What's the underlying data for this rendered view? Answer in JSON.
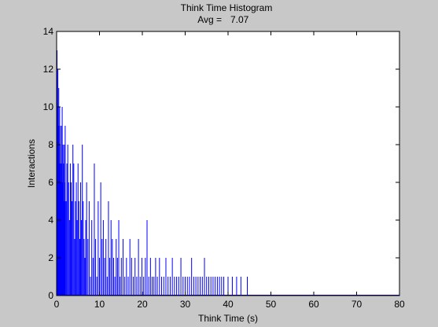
{
  "chart_data": {
    "type": "bar",
    "title": "Think Time Histogram",
    "subtitle_label": "Avg =",
    "subtitle_value": "7.07",
    "xlabel": "Think Time (s)",
    "ylabel": "Interactions",
    "xlim": [
      0,
      80
    ],
    "ylim": [
      0,
      14
    ],
    "xticks": [
      "0",
      "10",
      "20",
      "30",
      "40",
      "50",
      "60",
      "70",
      "80"
    ],
    "yticks": [
      "0",
      "2",
      "4",
      "6",
      "8",
      "10",
      "12",
      "14"
    ],
    "grid": false,
    "series_color": "#0000ff",
    "bin_width": 0.1,
    "x": [
      0.1,
      0.2,
      0.3,
      0.4,
      0.5,
      0.6,
      0.7,
      0.8,
      0.9,
      1.0,
      1.1,
      1.2,
      1.3,
      1.4,
      1.5,
      1.6,
      1.7,
      1.8,
      1.9,
      2.0,
      2.2,
      2.4,
      2.6,
      2.8,
      3.0,
      3.2,
      3.4,
      3.6,
      3.8,
      4.0,
      4.2,
      4.4,
      4.6,
      4.8,
      5.0,
      5.2,
      5.4,
      5.6,
      5.8,
      6.0,
      6.2,
      6.4,
      6.6,
      6.8,
      7.0,
      7.3,
      7.6,
      7.9,
      8.2,
      8.5,
      8.8,
      9.1,
      9.4,
      9.7,
      10.0,
      10.3,
      10.6,
      10.9,
      11.2,
      11.5,
      11.8,
      12.1,
      12.4,
      12.7,
      13.0,
      13.3,
      13.6,
      13.9,
      14.2,
      14.5,
      14.8,
      15.1,
      15.5,
      15.9,
      16.3,
      16.7,
      17.1,
      17.5,
      17.9,
      18.3,
      18.7,
      19.1,
      19.5,
      19.9,
      20.3,
      20.7,
      21.1,
      21.5,
      21.9,
      22.3,
      22.7,
      23.1,
      23.5,
      24.0,
      24.5,
      25.0,
      25.5,
      26.0,
      26.5,
      27.0,
      27.5,
      28.0,
      28.5,
      29.0,
      29.5,
      30.0,
      30.5,
      31.0,
      31.5,
      32.0,
      32.5,
      33.0,
      33.5,
      34.0,
      34.5,
      35.0,
      35.5,
      36.0,
      36.5,
      37.0,
      37.5,
      38.0,
      38.5,
      39.0,
      40.0,
      41.0,
      42.0,
      43.0,
      44.5
    ],
    "values": [
      13,
      10,
      12,
      9,
      11,
      7,
      10,
      8,
      9,
      6,
      7,
      9,
      10,
      6,
      8,
      7,
      5,
      8,
      6,
      9,
      5,
      7,
      8,
      6,
      4,
      7,
      6,
      5,
      8,
      7,
      3,
      5,
      6,
      4,
      7,
      5,
      3,
      6,
      4,
      8,
      5,
      3,
      2,
      4,
      6,
      3,
      5,
      1,
      4,
      2,
      7,
      3,
      1,
      5,
      2,
      6,
      3,
      4,
      2,
      3,
      1,
      5,
      2,
      4,
      3,
      2,
      1,
      3,
      2,
      4,
      1,
      2,
      3,
      1,
      2,
      1,
      3,
      2,
      1,
      2,
      1,
      3,
      1,
      2,
      1,
      2,
      4,
      1,
      2,
      1,
      1,
      2,
      1,
      2,
      1,
      1,
      2,
      1,
      1,
      2,
      1,
      1,
      1,
      2,
      1,
      1,
      1,
      1,
      2,
      1,
      1,
      1,
      1,
      1,
      2,
      1,
      1,
      1,
      1,
      1,
      1,
      1,
      1,
      1,
      1,
      1,
      1,
      1,
      1
    ]
  }
}
